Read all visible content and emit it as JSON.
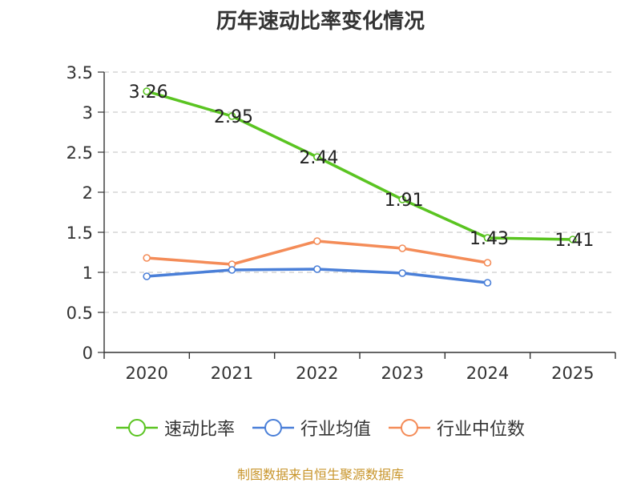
{
  "chart_data": {
    "type": "line",
    "title": "历年速动比率变化情况",
    "categories": [
      "2020",
      "2021",
      "2022",
      "2023",
      "2024",
      "2025"
    ],
    "y_ticks": [
      "0",
      "0.5",
      "1",
      "1.5",
      "2",
      "2.5",
      "3",
      "3.5"
    ],
    "ylim": [
      0,
      3.5
    ],
    "grid": true,
    "legend_position": "bottom",
    "series": [
      {
        "name": "速动比率",
        "color": "#5ac421",
        "values": [
          3.26,
          2.95,
          2.44,
          1.91,
          1.43,
          1.41
        ],
        "labels": [
          "3.26",
          "2.95",
          "2.44",
          "1.91",
          "1.43",
          "1.41"
        ]
      },
      {
        "name": "行业均值",
        "color": "#4a7fd8",
        "values": [
          0.95,
          1.03,
          1.04,
          0.99,
          0.87,
          null
        ]
      },
      {
        "name": "行业中位数",
        "color": "#f48c58",
        "values": [
          1.18,
          1.1,
          1.39,
          1.3,
          1.12,
          null
        ]
      }
    ]
  },
  "source": "制图数据来自恒生聚源数据库"
}
